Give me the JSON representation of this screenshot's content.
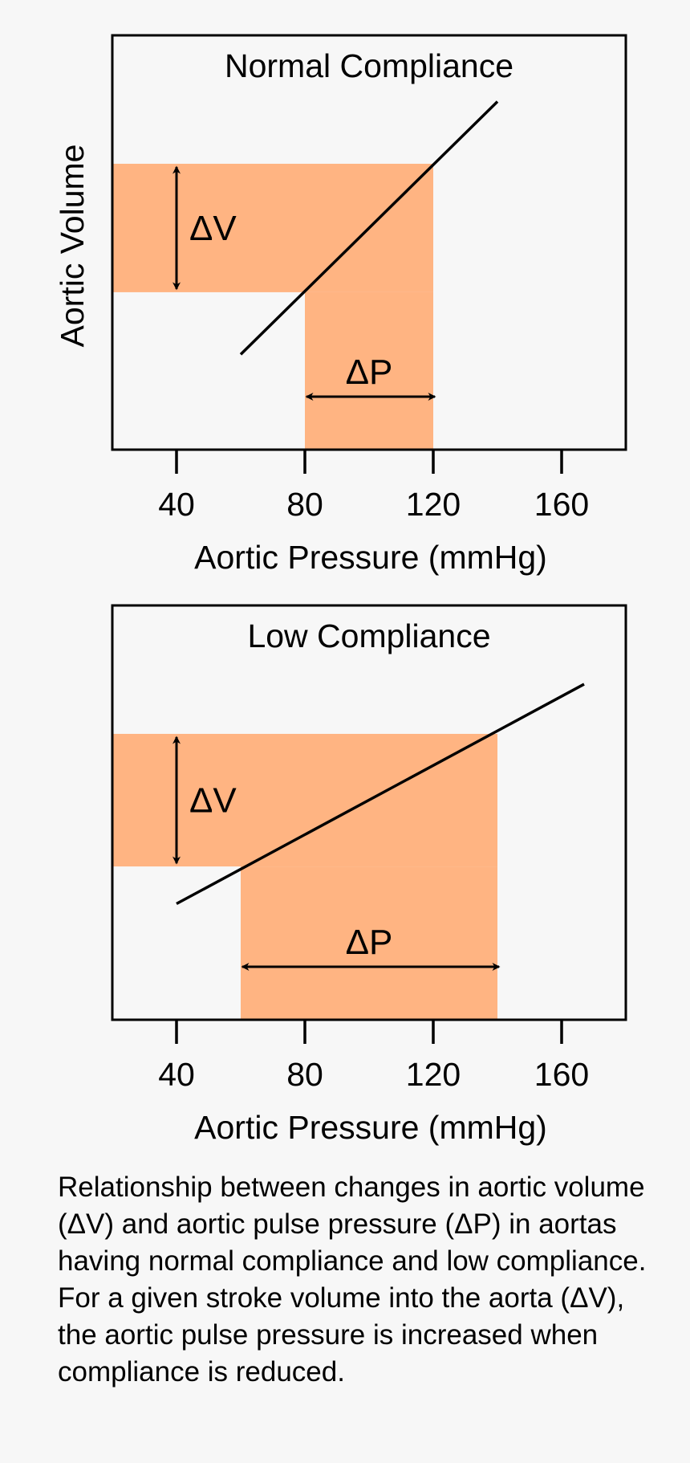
{
  "colors": {
    "background": "#f7f7f7",
    "highlight": "#ffb482",
    "ink": "#000000"
  },
  "caption": "Relationship between changes in aortic volume (ΔV) and aortic pulse pressure (ΔP) in aortas having normal compliance and low compliance. For a given stroke volume into the aorta (ΔV), the aortic pulse pressure is increased when compliance is reduced.",
  "chart_data": [
    {
      "type": "line",
      "title": "Normal Compliance",
      "xlabel": "Aortic Pressure (mmHg)",
      "ylabel": "Aortic Volume",
      "xticks": [
        40,
        80,
        120,
        160
      ],
      "xlim": [
        20,
        180
      ],
      "ylim": [
        0,
        1
      ],
      "grid": false,
      "line": {
        "x": [
          60,
          140
        ],
        "y": [
          0.23,
          0.84
        ]
      },
      "delta_v": {
        "label": "ΔV",
        "from": 0.38,
        "to": 0.69
      },
      "delta_p": {
        "label": "ΔP",
        "from": 80,
        "to": 120
      }
    },
    {
      "type": "line",
      "title": "Low Compliance",
      "xlabel": "Aortic Pressure (mmHg)",
      "ylabel": "",
      "xticks": [
        40,
        80,
        120,
        160
      ],
      "xlim": [
        20,
        180
      ],
      "ylim": [
        0,
        1
      ],
      "grid": false,
      "line": {
        "x": [
          40,
          167
        ],
        "y": [
          0.28,
          0.81
        ]
      },
      "delta_v": {
        "label": "ΔV",
        "from": 0.37,
        "to": 0.69
      },
      "delta_p": {
        "label": "ΔP",
        "from": 60,
        "to": 140
      }
    }
  ]
}
